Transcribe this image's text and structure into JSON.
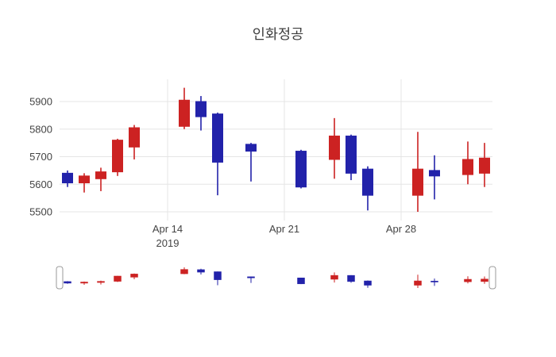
{
  "title": "인화정공",
  "chart": {
    "background_color": "#ffffff",
    "grid_color": "#e5e5e5",
    "tick_label_color": "#444444",
    "title_color": "#3d3d3d",
    "rangeslider_handle_border": "#999999"
  },
  "chart_data": {
    "type": "candlestick",
    "title": "인화정공",
    "increasing_color": "#cc2222",
    "decreasing_color": "#2222aa",
    "dates": [
      "2019-04-08",
      "2019-04-09",
      "2019-04-10",
      "2019-04-11",
      "2019-04-12",
      "2019-04-15",
      "2019-04-16",
      "2019-04-17",
      "2019-04-19",
      "2019-04-22",
      "2019-04-24",
      "2019-04-25",
      "2019-04-26",
      "2019-04-29",
      "2019-04-30",
      "2019-05-02",
      "2019-05-03"
    ],
    "open": [
      5640,
      5605,
      5620,
      5645,
      5735,
      5810,
      5900,
      5855,
      5745,
      5720,
      5690,
      5775,
      5655,
      5560,
      5650,
      5635,
      5640
    ],
    "high": [
      5650,
      5640,
      5660,
      5765,
      5815,
      5950,
      5920,
      5860,
      5750,
      5725,
      5840,
      5780,
      5665,
      5790,
      5705,
      5755,
      5750
    ],
    "low": [
      5590,
      5570,
      5575,
      5630,
      5690,
      5800,
      5795,
      5560,
      5610,
      5585,
      5620,
      5615,
      5505,
      5500,
      5545,
      5600,
      5590
    ],
    "close": [
      5605,
      5630,
      5645,
      5760,
      5805,
      5905,
      5845,
      5680,
      5720,
      5590,
      5775,
      5640,
      5560,
      5655,
      5630,
      5690,
      5695
    ],
    "yticks": [
      5500,
      5600,
      5700,
      5800,
      5900
    ],
    "xticks": [
      {
        "label": "Apr 14",
        "sublabel": "2019",
        "date": "2019-04-14"
      },
      {
        "label": "Apr 21",
        "sublabel": "",
        "date": "2019-04-21"
      },
      {
        "label": "Apr 28",
        "sublabel": "",
        "date": "2019-04-28"
      }
    ],
    "ylim": [
      5460,
      5980
    ],
    "xlabel": "",
    "ylabel": "",
    "grid": true,
    "legend": "none",
    "rangeslider": true
  }
}
